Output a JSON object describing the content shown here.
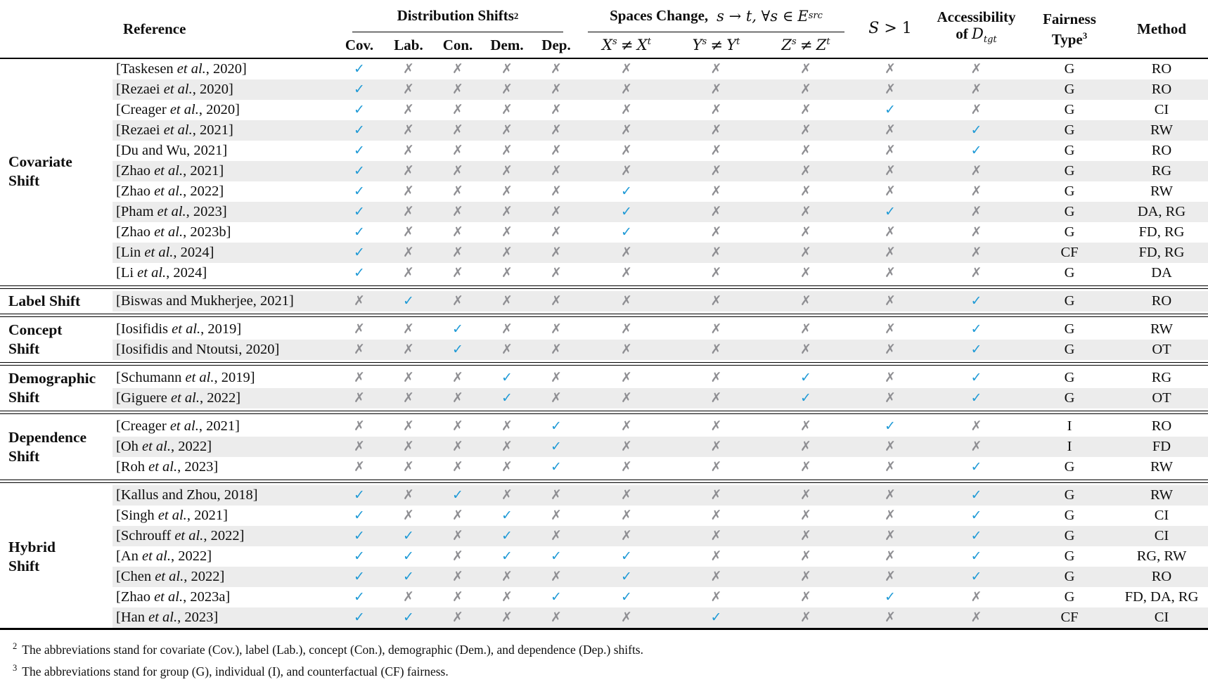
{
  "colors": {
    "check": "#1f9ad6",
    "cross": "#8e8e92",
    "stripe": "#ececec"
  },
  "icons": {
    "check": "✓",
    "cross": "✗"
  },
  "header": {
    "reference": "Reference",
    "dist": {
      "label": "Distribution Shifts",
      "sup": "2",
      "cols": [
        "Cov.",
        "Lab.",
        "Con.",
        "Dem.",
        "Dep."
      ]
    },
    "spaces": {
      "label": "Spaces Change,",
      "math": "s → t, ∀s ∈",
      "set": "E",
      "set_sub": "src",
      "cols": [
        {
          "l": "X",
          "ls": "s",
          "op": "≠",
          "r": "X",
          "rs": "t"
        },
        {
          "l": "Y",
          "ls": "s",
          "op": "≠",
          "r": "Y",
          "rs": "t"
        },
        {
          "l": "Z",
          "ls": "s",
          "op": "≠",
          "r": "Z",
          "rs": "t"
        }
      ]
    },
    "s_gt_1": {
      "s": "S",
      "rest": "> 1"
    },
    "access": {
      "line1": "Accessibility",
      "of": "of",
      "d": "D",
      "d_sub": "tgt"
    },
    "fairness": {
      "line1": "Fairness",
      "line2": "Type",
      "sup": "3"
    },
    "method": "Method"
  },
  "groups": [
    {
      "label": [
        "Covariate",
        "Shift"
      ],
      "rows": [
        {
          "ref_pre": "[Taskesen ",
          "ref_it": "et al.",
          "ref_post": ", 2020]",
          "marks": [
            1,
            0,
            0,
            0,
            0,
            0,
            0,
            0,
            0,
            0
          ],
          "fairness": "G",
          "method": "RO"
        },
        {
          "ref_pre": "[Rezaei ",
          "ref_it": "et al.",
          "ref_post": ", 2020]",
          "marks": [
            1,
            0,
            0,
            0,
            0,
            0,
            0,
            0,
            0,
            0
          ],
          "fairness": "G",
          "method": "RO"
        },
        {
          "ref_pre": "[Creager ",
          "ref_it": "et al.",
          "ref_post": ", 2020]",
          "marks": [
            1,
            0,
            0,
            0,
            0,
            0,
            0,
            0,
            1,
            0
          ],
          "fairness": "G",
          "method": "CI"
        },
        {
          "ref_pre": "[Rezaei ",
          "ref_it": "et al.",
          "ref_post": ", 2021]",
          "marks": [
            1,
            0,
            0,
            0,
            0,
            0,
            0,
            0,
            0,
            1
          ],
          "fairness": "G",
          "method": "RW"
        },
        {
          "ref_pre": "[Du and Wu, 2021]",
          "ref_it": "",
          "ref_post": "",
          "marks": [
            1,
            0,
            0,
            0,
            0,
            0,
            0,
            0,
            0,
            1
          ],
          "fairness": "G",
          "method": "RO"
        },
        {
          "ref_pre": "[Zhao ",
          "ref_it": "et al.",
          "ref_post": ", 2021]",
          "marks": [
            1,
            0,
            0,
            0,
            0,
            0,
            0,
            0,
            0,
            0
          ],
          "fairness": "G",
          "method": "RG"
        },
        {
          "ref_pre": "[Zhao ",
          "ref_it": "et al.",
          "ref_post": ", 2022]",
          "marks": [
            1,
            0,
            0,
            0,
            0,
            1,
            0,
            0,
            0,
            0
          ],
          "fairness": "G",
          "method": "RW"
        },
        {
          "ref_pre": "[Pham ",
          "ref_it": "et al.",
          "ref_post": ", 2023]",
          "marks": [
            1,
            0,
            0,
            0,
            0,
            1,
            0,
            0,
            1,
            0
          ],
          "fairness": "G",
          "method": "DA, RG"
        },
        {
          "ref_pre": "[Zhao ",
          "ref_it": "et al.",
          "ref_post": ", 2023b]",
          "marks": [
            1,
            0,
            0,
            0,
            0,
            1,
            0,
            0,
            0,
            0
          ],
          "fairness": "G",
          "method": "FD, RG"
        },
        {
          "ref_pre": "[Lin ",
          "ref_it": "et al.",
          "ref_post": ", 2024]",
          "marks": [
            1,
            0,
            0,
            0,
            0,
            0,
            0,
            0,
            0,
            0
          ],
          "fairness": "CF",
          "method": "FD, RG"
        },
        {
          "ref_pre": "[Li ",
          "ref_it": "et al.",
          "ref_post": ", 2024]",
          "marks": [
            1,
            0,
            0,
            0,
            0,
            0,
            0,
            0,
            0,
            0
          ],
          "fairness": "G",
          "method": "DA"
        }
      ]
    },
    {
      "label": [
        "Label Shift"
      ],
      "rows": [
        {
          "ref_pre": "[Biswas and Mukherjee, 2021]",
          "ref_it": "",
          "ref_post": "",
          "marks": [
            0,
            1,
            0,
            0,
            0,
            0,
            0,
            0,
            0,
            1
          ],
          "fairness": "G",
          "method": "RO"
        }
      ]
    },
    {
      "label": [
        "Concept",
        "Shift"
      ],
      "rows": [
        {
          "ref_pre": "[Iosifidis ",
          "ref_it": "et al.",
          "ref_post": ", 2019]",
          "marks": [
            0,
            0,
            1,
            0,
            0,
            0,
            0,
            0,
            0,
            1
          ],
          "fairness": "G",
          "method": "RW"
        },
        {
          "ref_pre": "[Iosifidis and Ntoutsi, 2020]",
          "ref_it": "",
          "ref_post": "",
          "marks": [
            0,
            0,
            1,
            0,
            0,
            0,
            0,
            0,
            0,
            1
          ],
          "fairness": "G",
          "method": "OT"
        }
      ]
    },
    {
      "label": [
        "Demographic",
        "Shift"
      ],
      "rows": [
        {
          "ref_pre": "[Schumann ",
          "ref_it": "et al.",
          "ref_post": ", 2019]",
          "marks": [
            0,
            0,
            0,
            1,
            0,
            0,
            0,
            1,
            0,
            1
          ],
          "fairness": "G",
          "method": "RG"
        },
        {
          "ref_pre": "[Giguere ",
          "ref_it": "et al.",
          "ref_post": ", 2022]",
          "marks": [
            0,
            0,
            0,
            1,
            0,
            0,
            0,
            1,
            0,
            1
          ],
          "fairness": "G",
          "method": "OT"
        }
      ]
    },
    {
      "label": [
        "Dependence",
        "Shift"
      ],
      "rows": [
        {
          "ref_pre": "[Creager ",
          "ref_it": "et al.",
          "ref_post": ", 2021]",
          "marks": [
            0,
            0,
            0,
            0,
            1,
            0,
            0,
            0,
            1,
            0
          ],
          "fairness": "I",
          "method": "RO"
        },
        {
          "ref_pre": "[Oh ",
          "ref_it": "et al.",
          "ref_post": ", 2022]",
          "marks": [
            0,
            0,
            0,
            0,
            1,
            0,
            0,
            0,
            0,
            0
          ],
          "fairness": "I",
          "method": "FD"
        },
        {
          "ref_pre": "[Roh ",
          "ref_it": "et al.",
          "ref_post": ", 2023]",
          "marks": [
            0,
            0,
            0,
            0,
            1,
            0,
            0,
            0,
            0,
            1
          ],
          "fairness": "G",
          "method": "RW"
        }
      ]
    },
    {
      "label": [
        "Hybrid",
        "Shift"
      ],
      "rows": [
        {
          "ref_pre": "[Kallus and Zhou, 2018]",
          "ref_it": "",
          "ref_post": "",
          "marks": [
            1,
            0,
            1,
            0,
            0,
            0,
            0,
            0,
            0,
            1
          ],
          "fairness": "G",
          "method": "RW"
        },
        {
          "ref_pre": "[Singh ",
          "ref_it": "et al.",
          "ref_post": ", 2021]",
          "marks": [
            1,
            0,
            0,
            1,
            0,
            0,
            0,
            0,
            0,
            1
          ],
          "fairness": "G",
          "method": "CI"
        },
        {
          "ref_pre": "[Schrouff ",
          "ref_it": "et al.",
          "ref_post": ", 2022]",
          "marks": [
            1,
            1,
            0,
            1,
            0,
            0,
            0,
            0,
            0,
            1
          ],
          "fairness": "G",
          "method": "CI"
        },
        {
          "ref_pre": "[An ",
          "ref_it": "et al.",
          "ref_post": ", 2022]",
          "marks": [
            1,
            1,
            0,
            1,
            1,
            1,
            0,
            0,
            0,
            1
          ],
          "fairness": "G",
          "method": "RG, RW"
        },
        {
          "ref_pre": "[Chen ",
          "ref_it": "et al.",
          "ref_post": ", 2022]",
          "marks": [
            1,
            1,
            0,
            0,
            0,
            1,
            0,
            0,
            0,
            1
          ],
          "fairness": "G",
          "method": "RO"
        },
        {
          "ref_pre": "[Zhao ",
          "ref_it": "et al.",
          "ref_post": ", 2023a]",
          "marks": [
            1,
            0,
            0,
            0,
            1,
            1,
            0,
            0,
            1,
            0
          ],
          "fairness": "G",
          "method": "FD, DA, RG"
        },
        {
          "ref_pre": "[Han ",
          "ref_it": "et al.",
          "ref_post": ", 2023]",
          "marks": [
            1,
            1,
            0,
            0,
            0,
            0,
            1,
            0,
            0,
            0
          ],
          "fairness": "CF",
          "method": "CI"
        }
      ]
    }
  ],
  "footnotes": [
    {
      "sup": "2",
      "text": "The abbreviations stand for covariate (Cov.), label (Lab.), concept (Con.), demographic (Dem.), and dependence (Dep.) shifts."
    },
    {
      "sup": "3",
      "text": "The abbreviations stand for group (G), individual (I), and counterfactual (CF) fairness."
    }
  ]
}
